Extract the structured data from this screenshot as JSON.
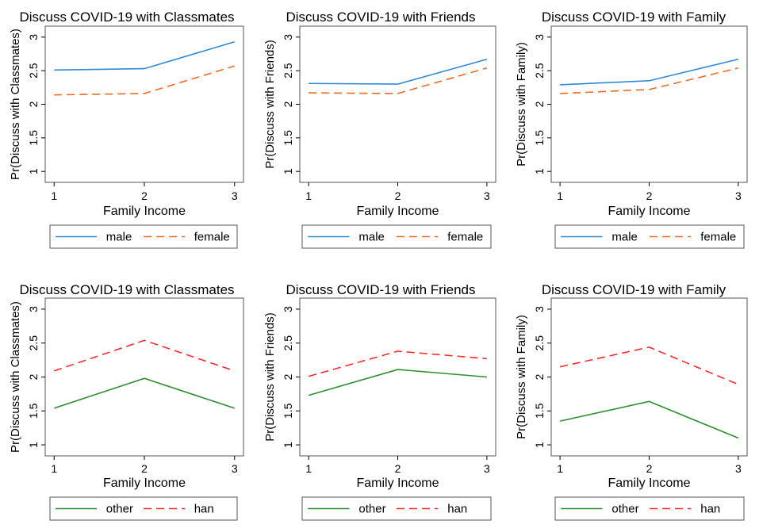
{
  "colors": {
    "male": "#2e8ad8",
    "female": "#f06a22",
    "other": "#2b8f2b",
    "han": "#ff2a2a",
    "frame": "#555555"
  },
  "chart_data": [
    {
      "type": "line",
      "title": "Discuss COVID-19 with Classmates",
      "xlabel": "Family Income",
      "ylabel": "Pr(Discuss with Classmates)",
      "x": [
        1,
        2,
        3
      ],
      "xticks": [
        "1",
        "2",
        "3"
      ],
      "ylim": [
        1,
        3
      ],
      "yticks": [
        "1",
        "1.5",
        "2",
        "2.5",
        "3"
      ],
      "series": [
        {
          "name": "male",
          "values": [
            2.51,
            2.53,
            2.93
          ],
          "style": "solid",
          "color_key": "male"
        },
        {
          "name": "female",
          "values": [
            2.14,
            2.16,
            2.57
          ],
          "style": "dash",
          "color_key": "female"
        }
      ]
    },
    {
      "type": "line",
      "title": "Discuss COVID-19 with Friends",
      "xlabel": "Family Income",
      "ylabel": "Pr(Discuss with Friends)",
      "x": [
        1,
        2,
        3
      ],
      "xticks": [
        "1",
        "2",
        "3"
      ],
      "ylim": [
        1,
        3
      ],
      "yticks": [
        "1",
        "1.5",
        "2",
        "2.5",
        "3"
      ],
      "series": [
        {
          "name": "male",
          "values": [
            2.31,
            2.3,
            2.67
          ],
          "style": "solid",
          "color_key": "male"
        },
        {
          "name": "female",
          "values": [
            2.17,
            2.16,
            2.54
          ],
          "style": "dash",
          "color_key": "female"
        }
      ]
    },
    {
      "type": "line",
      "title": "Discuss COVID-19 with Family",
      "xlabel": "Family Income",
      "ylabel": "Pr(Discuss with Family)",
      "x": [
        1,
        2,
        3
      ],
      "xticks": [
        "1",
        "2",
        "3"
      ],
      "ylim": [
        1,
        3
      ],
      "yticks": [
        "1",
        "1.5",
        "2",
        "2.5",
        "3"
      ],
      "series": [
        {
          "name": "male",
          "values": [
            2.29,
            2.35,
            2.67
          ],
          "style": "solid",
          "color_key": "male"
        },
        {
          "name": "female",
          "values": [
            2.16,
            2.22,
            2.54
          ],
          "style": "dash",
          "color_key": "female"
        }
      ]
    },
    {
      "type": "line",
      "title": "Discuss COVID-19 with Classmates",
      "xlabel": "Family Income",
      "ylabel": "Pr(Discuss with Classmates)",
      "x": [
        1,
        2,
        3
      ],
      "xticks": [
        "1",
        "2",
        "3"
      ],
      "ylim": [
        1,
        3
      ],
      "yticks": [
        "1",
        "1.5",
        "2",
        "2.5",
        "3"
      ],
      "series": [
        {
          "name": "other",
          "values": [
            1.54,
            1.98,
            1.54
          ],
          "style": "solid",
          "color_key": "other"
        },
        {
          "name": "han",
          "values": [
            2.09,
            2.54,
            2.09
          ],
          "style": "dash",
          "color_key": "han"
        }
      ]
    },
    {
      "type": "line",
      "title": "Discuss COVID-19 with Friends",
      "xlabel": "Family Income",
      "ylabel": "Pr(Discuss with Friends)",
      "x": [
        1,
        2,
        3
      ],
      "xticks": [
        "1",
        "2",
        "3"
      ],
      "ylim": [
        1,
        3
      ],
      "yticks": [
        "1",
        "1.5",
        "2",
        "2.5",
        "3"
      ],
      "series": [
        {
          "name": "other",
          "values": [
            1.73,
            2.11,
            2.0
          ],
          "style": "solid",
          "color_key": "other"
        },
        {
          "name": "han",
          "values": [
            2.01,
            2.38,
            2.27
          ],
          "style": "dash",
          "color_key": "han"
        }
      ]
    },
    {
      "type": "line",
      "title": "Discuss COVID-19 with Family",
      "xlabel": "Family Income",
      "ylabel": "Pr(Discuss with Family)",
      "x": [
        1,
        2,
        3
      ],
      "xticks": [
        "1",
        "2",
        "3"
      ],
      "ylim": [
        1,
        3
      ],
      "yticks": [
        "1",
        "1.5",
        "2",
        "2.5",
        "3"
      ],
      "series": [
        {
          "name": "other",
          "values": [
            1.35,
            1.64,
            1.1
          ],
          "style": "solid",
          "color_key": "other"
        },
        {
          "name": "han",
          "values": [
            2.15,
            2.44,
            1.89
          ],
          "style": "dash",
          "color_key": "han"
        }
      ]
    }
  ]
}
